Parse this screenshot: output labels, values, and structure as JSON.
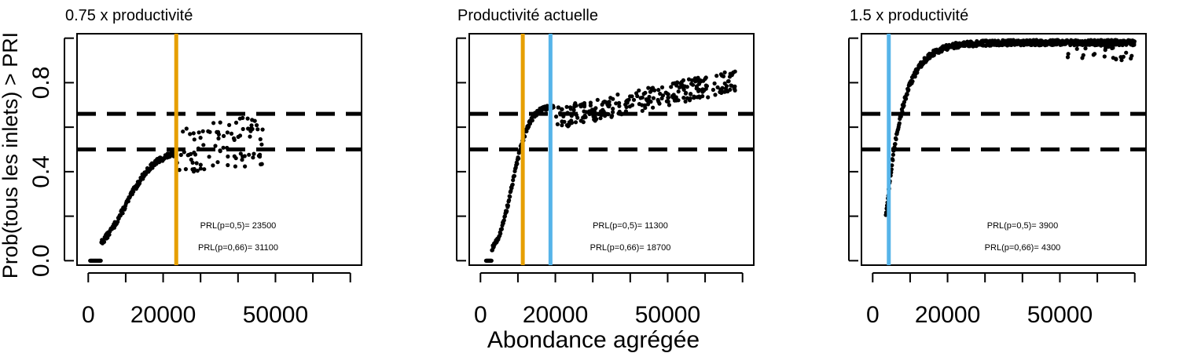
{
  "figure": {
    "ylabel": "Prob(tous les inlets) > PRI",
    "xlabel": "Abondance agrégée"
  },
  "chart_data": [
    {
      "type": "scatter",
      "title": "0.75 x productivité",
      "xlim": [
        -3000,
        73000
      ],
      "ylim": [
        -0.02,
        1.02
      ],
      "x_ticks": [
        0,
        10000,
        20000,
        30000,
        40000,
        50000,
        60000,
        70000
      ],
      "x_tick_labels": [
        "0",
        "",
        "20000",
        "",
        "",
        "50000",
        "",
        ""
      ],
      "y_ticks": [
        0,
        0.2,
        0.4,
        0.6,
        0.8,
        1.0
      ],
      "y_tick_labels": [
        "0.0",
        "",
        "0.4",
        "",
        "0.8",
        ""
      ],
      "hlines": [
        0.5,
        0.66
      ],
      "vlines": [
        {
          "x": 23500,
          "color": "#E69F00"
        }
      ],
      "annotations": [
        "PRL(p=0,5)=  23500",
        "PRL(p=0,66)=  31100"
      ],
      "curve": {
        "x_start": 500,
        "x_end": 23500,
        "x_step": 150,
        "x0": 10000,
        "k": 0.00025,
        "ymax": 0.5,
        "x_cut": 3500,
        "jitter": 0.012
      },
      "scatter": {
        "x_start": 23600,
        "x_end": 47000,
        "count": 90,
        "jitter": 0.11,
        "y_fn": [
          0.5,
          1.8e-06
        ]
      }
    },
    {
      "type": "scatter",
      "title": "Productivité actuelle",
      "xlim": [
        -3000,
        73000
      ],
      "ylim": [
        -0.02,
        1.02
      ],
      "x_ticks": [
        0,
        10000,
        20000,
        30000,
        40000,
        50000,
        60000,
        70000
      ],
      "x_tick_labels": [
        "0",
        "",
        "20000",
        "",
        "",
        "50000",
        "",
        ""
      ],
      "y_ticks": [
        0,
        0.2,
        0.4,
        0.6,
        0.8,
        1.0
      ],
      "y_tick_labels": [],
      "hlines": [
        0.5,
        0.66
      ],
      "vlines": [
        {
          "x": 11300,
          "color": "#E69F00"
        },
        {
          "x": 18700,
          "color": "#56B4E9"
        }
      ],
      "annotations": [
        "PRL(p=0,5)=  11300",
        "PRL(p=0,66)=  18700"
      ],
      "curve": {
        "x_start": 1500,
        "x_end": 19500,
        "x_step": 120,
        "x0": 8600,
        "k": 0.00045,
        "ymax": 0.7,
        "x_cut": 3000,
        "jitter": 0.01
      },
      "scatter": {
        "x_start": 19500,
        "x_end": 68000,
        "count": 260,
        "jitter": 0.05,
        "y_fn": [
          0.64,
          3.5e-06
        ]
      }
    },
    {
      "type": "scatter",
      "title": "1.5 x productivité",
      "xlim": [
        -3000,
        73000
      ],
      "ylim": [
        -0.02,
        1.02
      ],
      "x_ticks": [
        0,
        10000,
        20000,
        30000,
        40000,
        50000,
        60000,
        70000
      ],
      "x_tick_labels": [
        "0",
        "",
        "20000",
        "",
        "",
        "50000",
        "",
        ""
      ],
      "y_ticks": [
        0,
        0.2,
        0.4,
        0.6,
        0.8,
        1.0
      ],
      "y_tick_labels": [],
      "hlines": [
        0.5,
        0.66
      ],
      "vlines": [
        {
          "x": 4300,
          "color": "#56B4E9"
        }
      ],
      "annotations": [
        "PRL(p=0,5)=  3900",
        "PRL(p=0,66)=  4300"
      ],
      "curve": {
        "x_start": 3500,
        "x_end": 70000,
        "x_step": 110,
        "x0": 2500,
        "k": 0.00022,
        "ymax": 0.98,
        "x_cut": 0,
        "jitter": 0.012
      },
      "scatter": {
        "x_start": 52000,
        "x_end": 70000,
        "count": 30,
        "jitter": 0.04,
        "y_fn": [
          0.94,
          0.0
        ]
      }
    }
  ]
}
